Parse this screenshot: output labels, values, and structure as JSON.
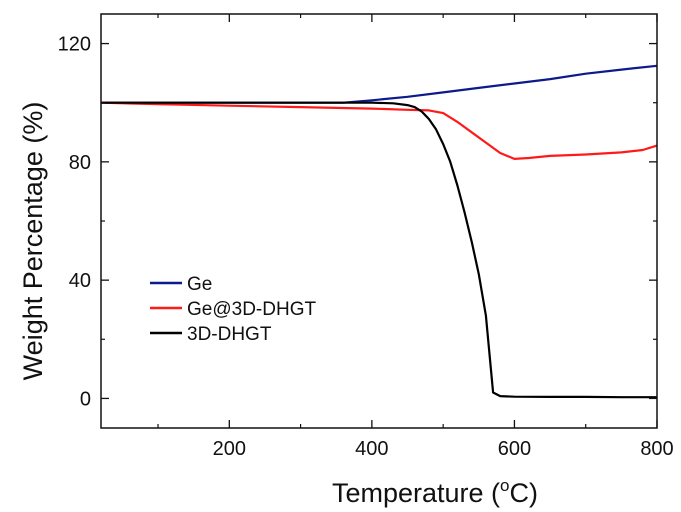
{
  "chart_data": {
    "type": "line",
    "title": "",
    "xlabel": "Temperature (",
    "xlabel_sup": "o",
    "xlabel_tail": "C)",
    "ylabel": "Weight Percentage (%)",
    "xlim": [
      20,
      800
    ],
    "ylim": [
      -10,
      130
    ],
    "xticks": [
      200,
      400,
      600,
      800
    ],
    "xticks_minor": [
      100,
      300,
      500,
      700
    ],
    "yticks": [
      0,
      40,
      80,
      120
    ],
    "yticks_minor": [
      20,
      60,
      100
    ],
    "grid": false,
    "legend_position": "lower-left",
    "series": [
      {
        "name": "Ge",
        "color": "#0d1a8c",
        "x": [
          20,
          100,
          200,
          300,
          360,
          400,
          450,
          500,
          550,
          600,
          650,
          700,
          750,
          800
        ],
        "y": [
          100,
          100,
          100,
          100,
          100,
          100.8,
          102.0,
          103.5,
          105.0,
          106.5,
          108.0,
          109.8,
          111.2,
          112.5
        ]
      },
      {
        "name": "Ge@3D-DHGT",
        "color": "#ff1a1a",
        "x": [
          20,
          100,
          200,
          300,
          400,
          450,
          480,
          500,
          520,
          540,
          560,
          580,
          600,
          620,
          650,
          700,
          750,
          780,
          800
        ],
        "y": [
          100,
          99.5,
          99.0,
          98.5,
          98.0,
          97.6,
          97.4,
          96.5,
          93.5,
          90.0,
          86.5,
          83.0,
          81.0,
          81.3,
          82.0,
          82.5,
          83.2,
          84.0,
          85.5
        ]
      },
      {
        "name": "3D-DHGT",
        "color": "#000000",
        "x": [
          20,
          100,
          200,
          300,
          400,
          430,
          450,
          460,
          470,
          480,
          490,
          500,
          510,
          520,
          530,
          540,
          550,
          560,
          565,
          570,
          580,
          600,
          650,
          700,
          750,
          800
        ],
        "y": [
          100,
          100,
          100,
          100,
          100,
          99.8,
          99.2,
          98.5,
          97.0,
          94.5,
          91.0,
          86.0,
          80.0,
          72.0,
          63.0,
          53.0,
          42.0,
          28.0,
          15.0,
          2.0,
          0.8,
          0.6,
          0.5,
          0.5,
          0.4,
          0.4
        ]
      }
    ]
  }
}
